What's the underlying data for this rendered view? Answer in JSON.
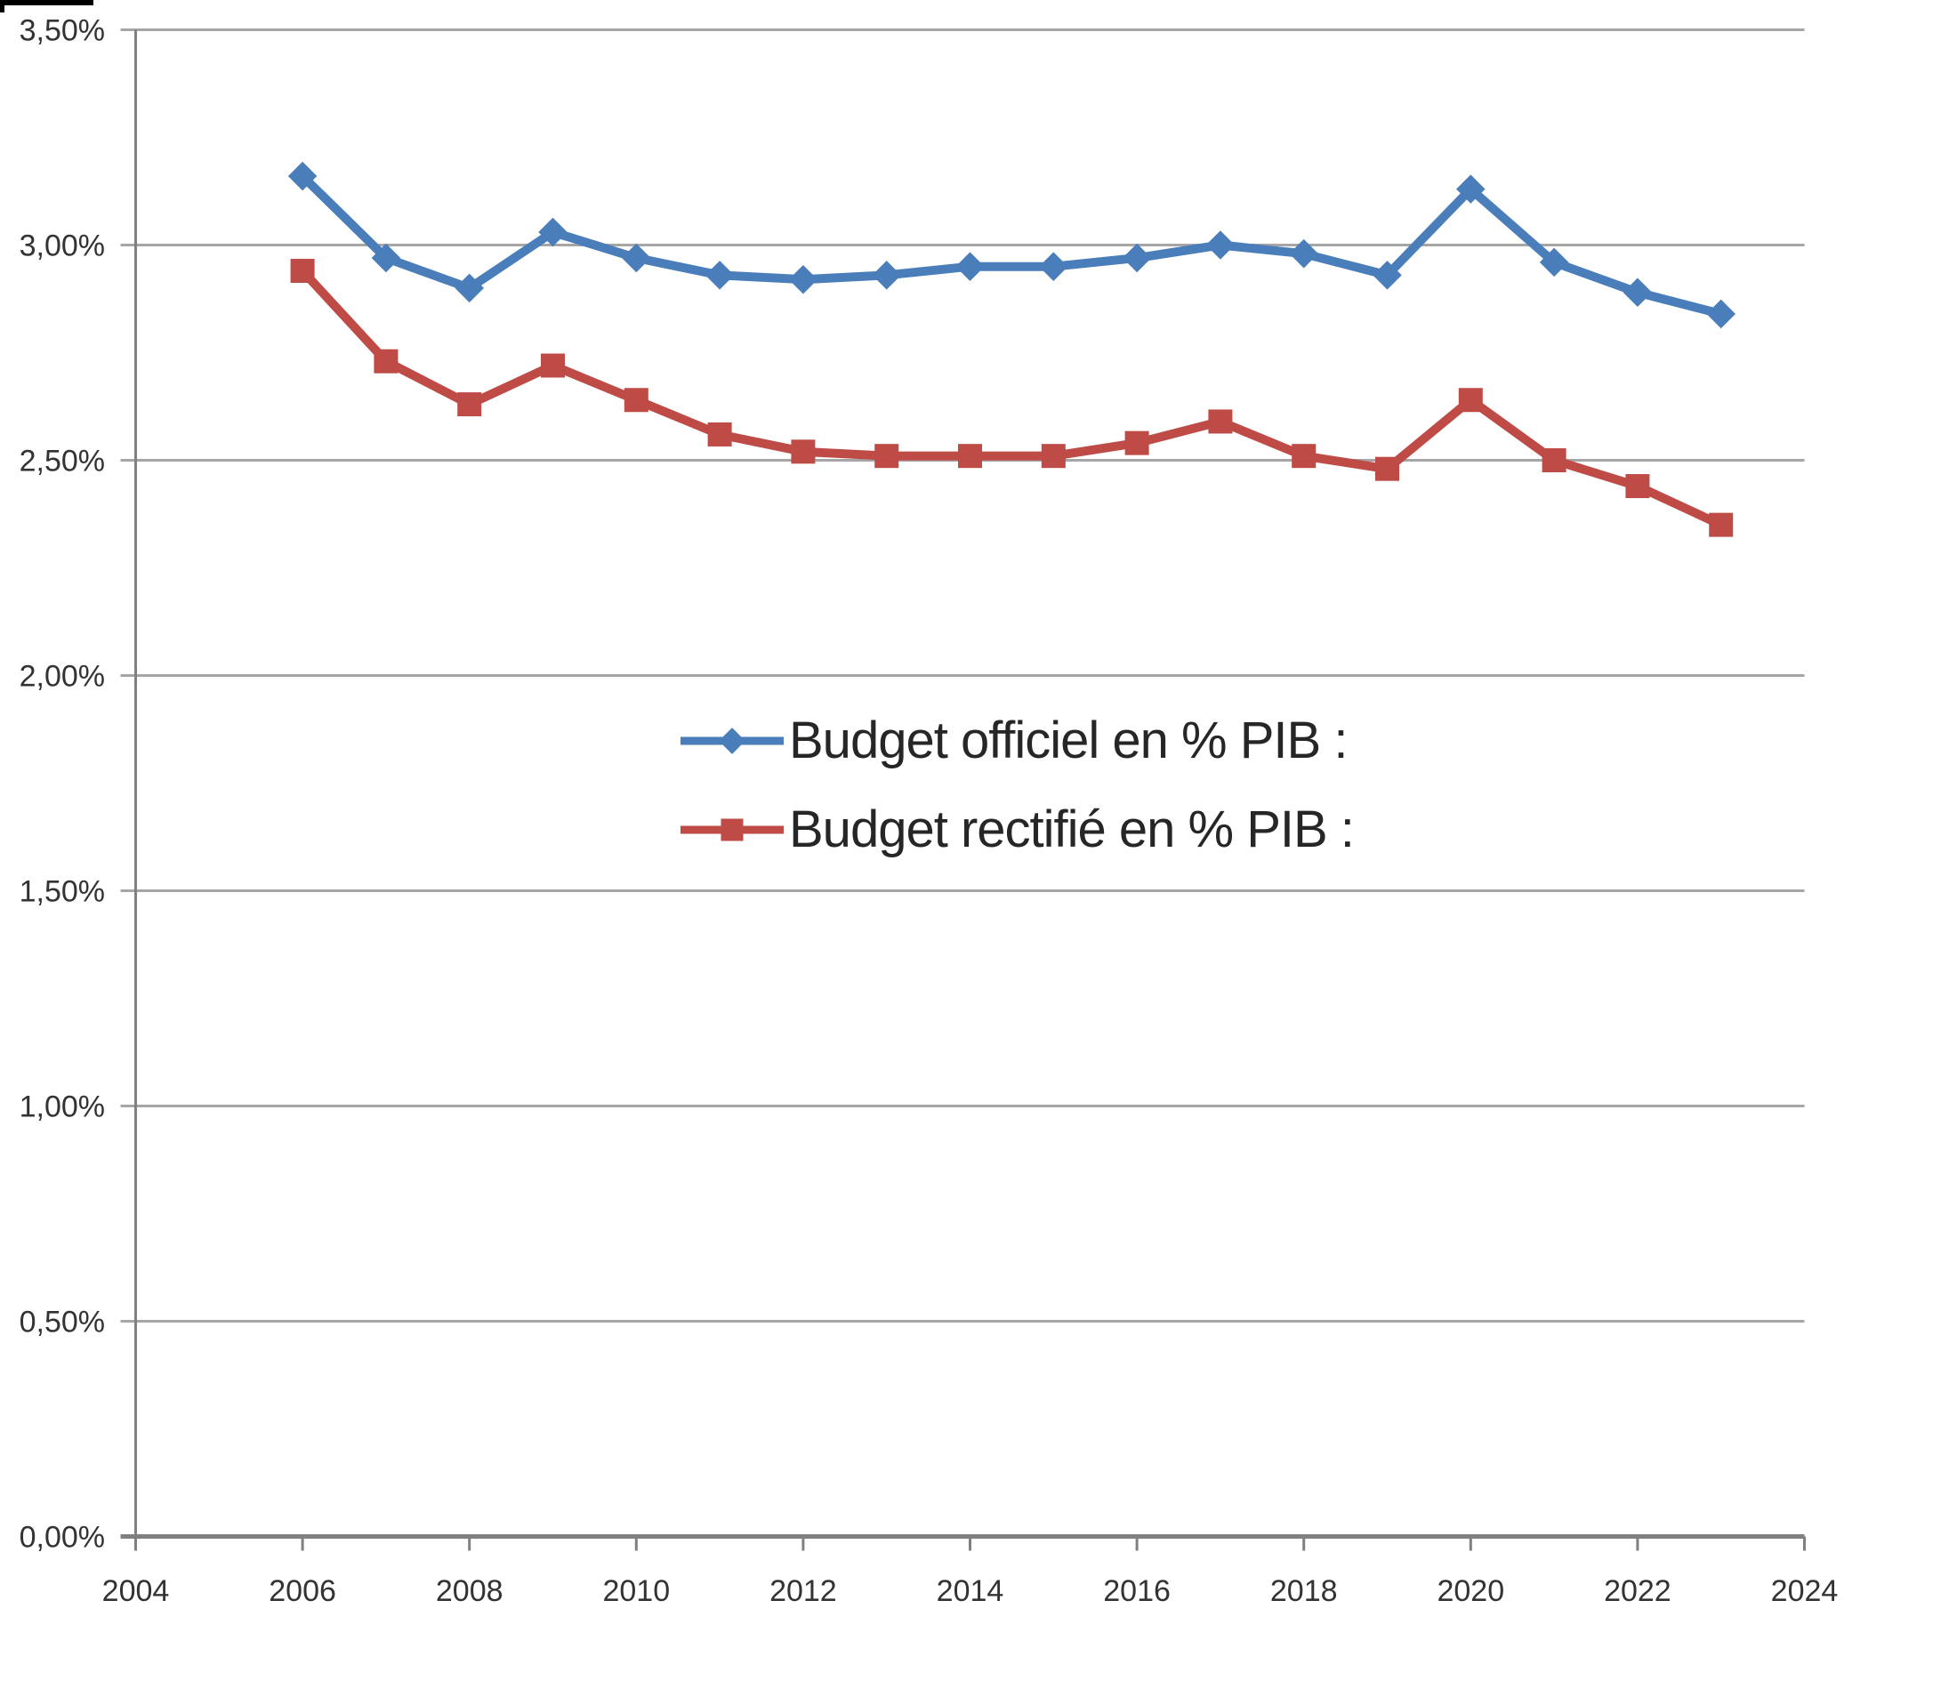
{
  "chart_data": {
    "type": "line",
    "x": [
      2006,
      2007,
      2008,
      2009,
      2010,
      2011,
      2012,
      2013,
      2014,
      2015,
      2016,
      2017,
      2018,
      2019,
      2020,
      2021,
      2022,
      2023
    ],
    "series": [
      {
        "name": "Budget officiel en % PIB :",
        "color": "#4a7eba",
        "marker": "diamond",
        "values": [
          3.16,
          2.97,
          2.9,
          3.03,
          2.97,
          2.93,
          2.92,
          2.93,
          2.95,
          2.95,
          2.97,
          3.0,
          2.98,
          2.93,
          3.13,
          2.96,
          2.89,
          2.84
        ]
      },
      {
        "name": "Budget rectifié en % PIB :",
        "color": "#bf4b47",
        "marker": "square",
        "values": [
          2.94,
          2.73,
          2.63,
          2.72,
          2.64,
          2.56,
          2.52,
          2.51,
          2.51,
          2.51,
          2.54,
          2.59,
          2.51,
          2.48,
          2.64,
          2.5,
          2.44,
          2.35
        ]
      }
    ],
    "x_axis": {
      "min": 2004,
      "max": 2024,
      "tick_step": 2,
      "tick_labels": [
        "2004",
        "2006",
        "2008",
        "2010",
        "2012",
        "2014",
        "2016",
        "2018",
        "2020",
        "2022",
        "2024"
      ]
    },
    "y_axis": {
      "min": 0,
      "max": 3.5,
      "tick_step": 0.5,
      "tick_labels": [
        "0,00%",
        "0,50%",
        "1,00%",
        "1,50%",
        "2,00%",
        "2,50%",
        "3,00%",
        "3,50%"
      ]
    },
    "grid": true,
    "legend_position": "center-of-plot",
    "colors": {
      "gridline": "#a6a6a6",
      "axis": "#808080",
      "tick_text": "#333333",
      "legend_text": "#262626",
      "background": "#ffffff",
      "crop_border": "#000000"
    }
  }
}
